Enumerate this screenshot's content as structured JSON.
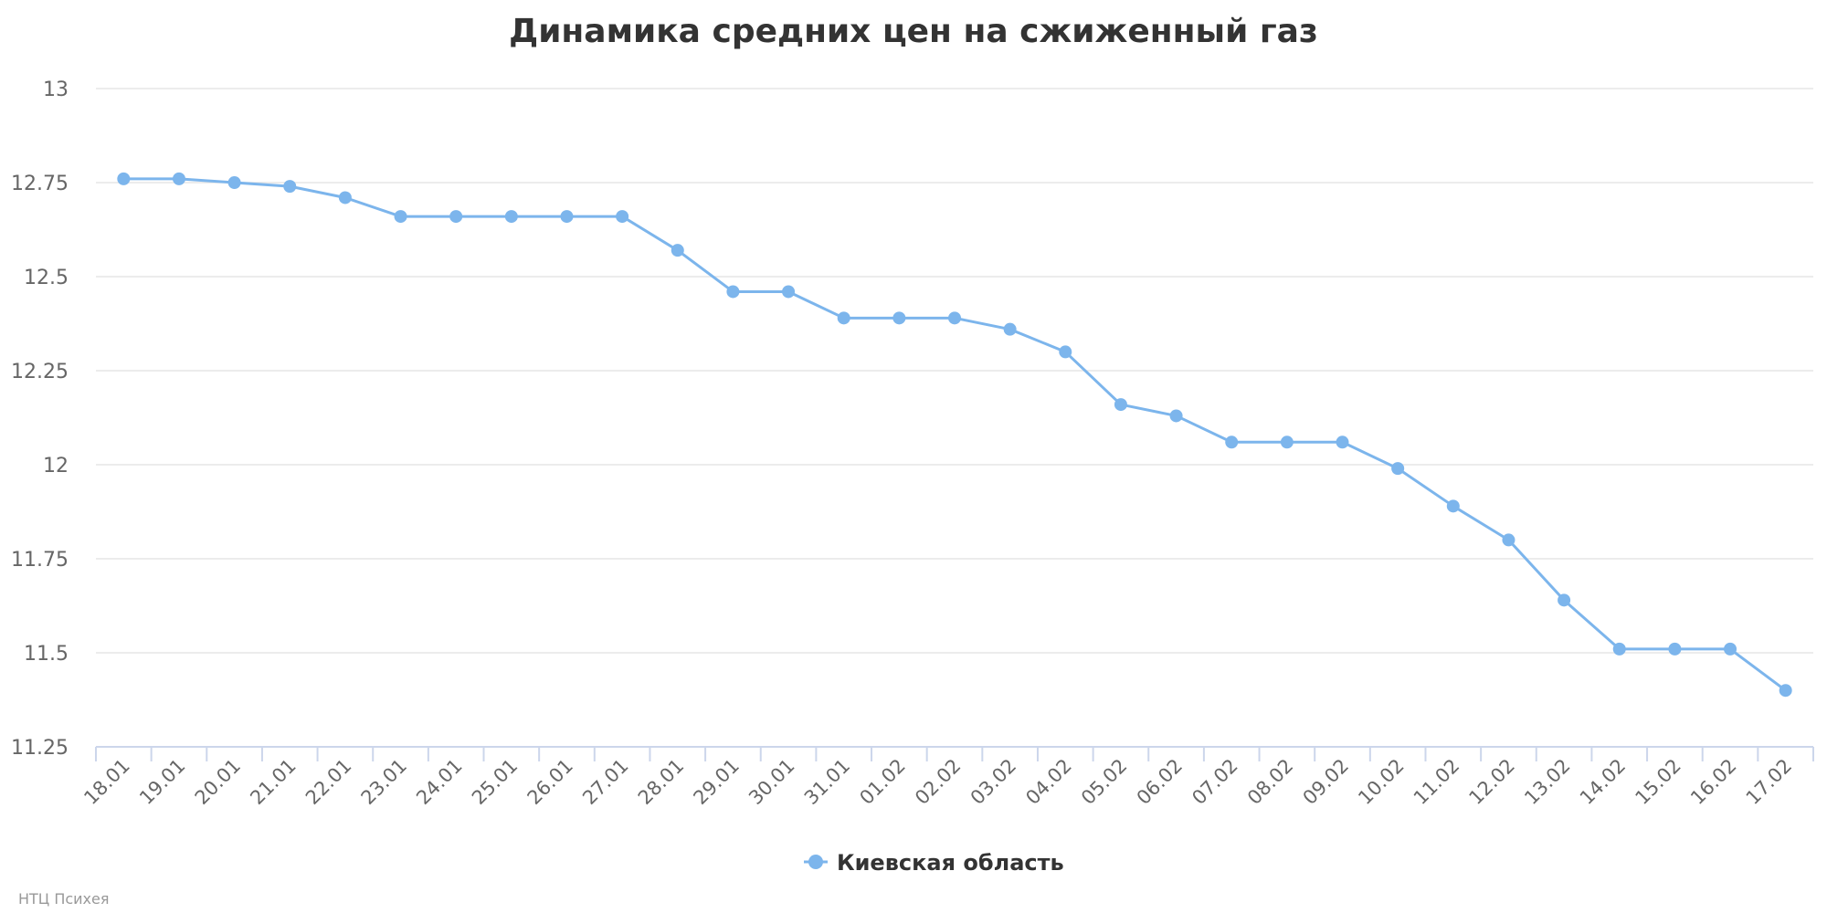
{
  "chart_data": {
    "type": "line",
    "title": "Динамика средних цен на сжиженный газ",
    "xlabel": "",
    "ylabel": "",
    "ylim": [
      11.25,
      13
    ],
    "yticks": [
      "11.25",
      "11.5",
      "11.75",
      "12",
      "12.25",
      "12.5",
      "12.75",
      "13"
    ],
    "grid": true,
    "legend_position": "bottom-center",
    "categories": [
      "18.01",
      "19.01",
      "20.01",
      "21.01",
      "22.01",
      "23.01",
      "24.01",
      "25.01",
      "26.01",
      "27.01",
      "28.01",
      "29.01",
      "30.01",
      "31.01",
      "01.02",
      "02.02",
      "03.02",
      "04.02",
      "05.02",
      "06.02",
      "07.02",
      "08.02",
      "09.02",
      "10.02",
      "11.02",
      "12.02",
      "13.02",
      "14.02",
      "15.02",
      "16.02",
      "17.02"
    ],
    "series": [
      {
        "name": "Киевская область",
        "color": "#7cb5ec",
        "values": [
          12.76,
          12.76,
          12.75,
          12.74,
          12.71,
          12.66,
          12.66,
          12.66,
          12.66,
          12.66,
          12.57,
          12.46,
          12.46,
          12.39,
          12.39,
          12.39,
          12.36,
          12.3,
          12.16,
          12.13,
          12.06,
          12.06,
          12.06,
          11.99,
          11.89,
          11.8,
          11.64,
          11.51,
          11.51,
          11.51,
          11.4
        ]
      }
    ]
  },
  "credits": "НТЦ Психея"
}
